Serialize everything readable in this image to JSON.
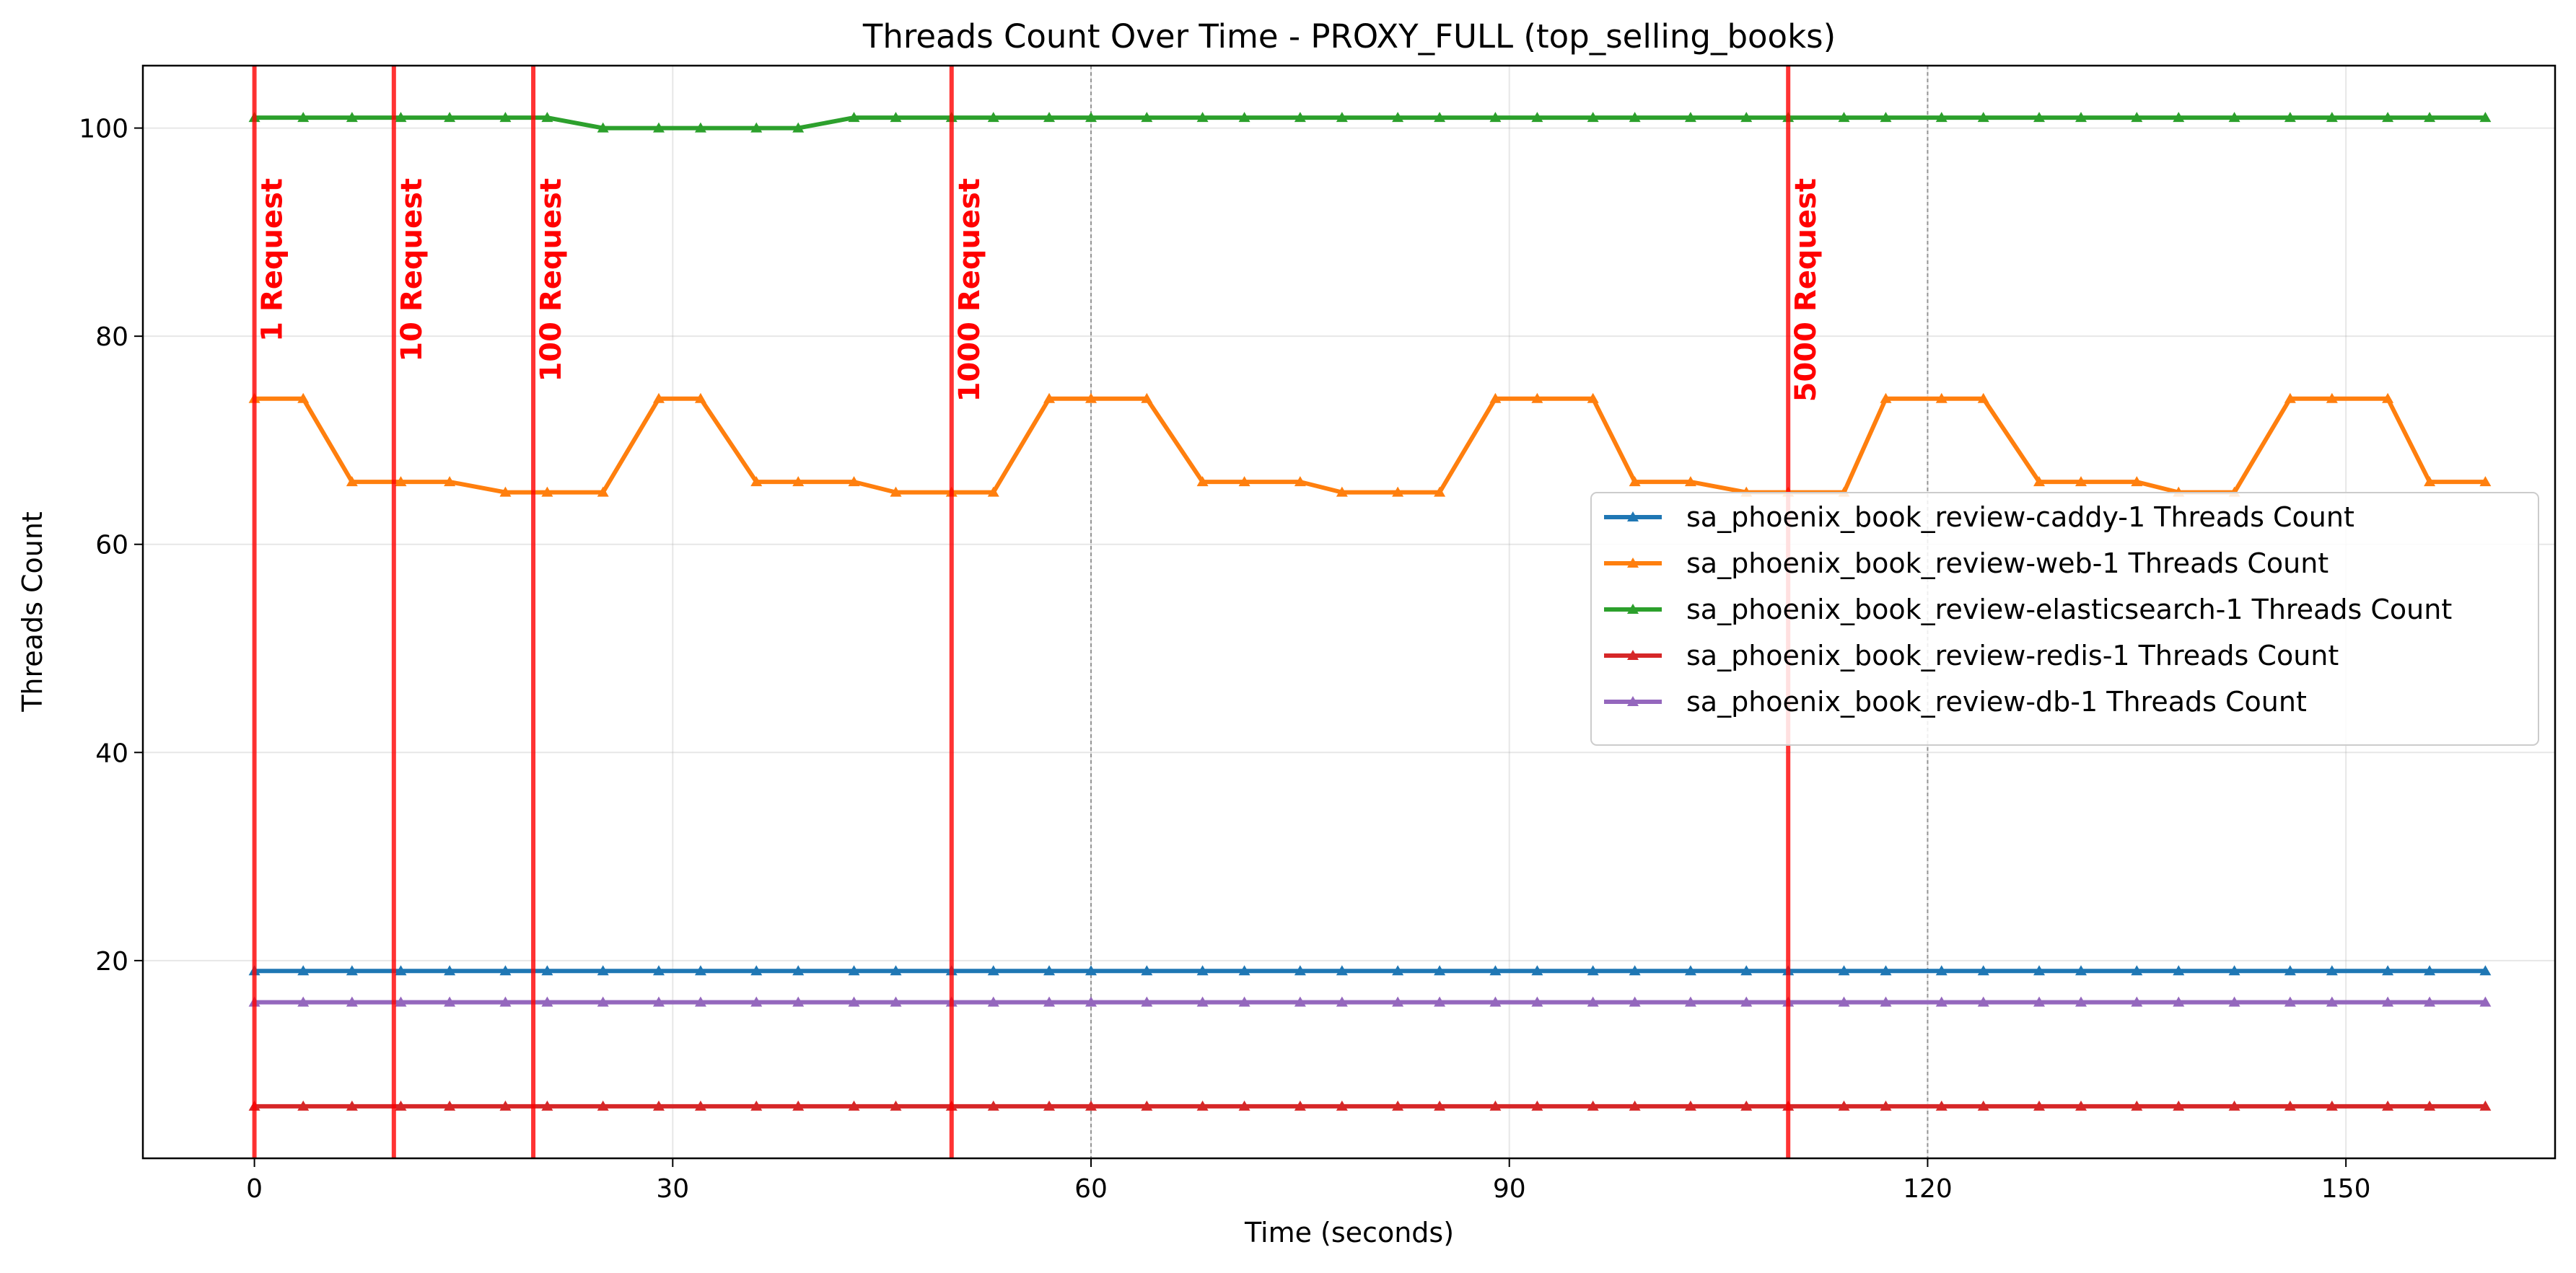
{
  "chart_data": {
    "type": "line",
    "title": "Threads Count Over Time - PROXY_FULL (top_selling_books)",
    "xlabel": "Time (seconds)",
    "ylabel": "Threads Count",
    "xlim": [
      -8,
      165
    ],
    "ylim": [
      1,
      106
    ],
    "xticks": [
      0,
      30,
      60,
      90,
      120,
      150
    ],
    "yticks": [
      20,
      40,
      60,
      80,
      100
    ],
    "grid": true,
    "legend_position": "center-right",
    "x": [
      0,
      3.5,
      7,
      10.5,
      14,
      18,
      21,
      25,
      29,
      32,
      36,
      39,
      43,
      46,
      50,
      53,
      57,
      60,
      64,
      68,
      71,
      75,
      78,
      82,
      85,
      89,
      92,
      96,
      99,
      103,
      107,
      110,
      114,
      117,
      121,
      124,
      128,
      131,
      135,
      138,
      142,
      146,
      149,
      153,
      156,
      160
    ],
    "series": [
      {
        "name": "sa_phoenix_book_review-caddy-1 Threads Count",
        "color": "#1f77b4",
        "values": [
          19,
          19,
          19,
          19,
          19,
          19,
          19,
          19,
          19,
          19,
          19,
          19,
          19,
          19,
          19,
          19,
          19,
          19,
          19,
          19,
          19,
          19,
          19,
          19,
          19,
          19,
          19,
          19,
          19,
          19,
          19,
          19,
          19,
          19,
          19,
          19,
          19,
          19,
          19,
          19,
          19,
          19,
          19,
          19,
          19,
          19
        ]
      },
      {
        "name": "sa_phoenix_book_review-web-1 Threads Count",
        "color": "#ff7f0e",
        "values": [
          74,
          74,
          66,
          66,
          66,
          65,
          65,
          65,
          74,
          74,
          66,
          66,
          66,
          65,
          65,
          65,
          74,
          74,
          74,
          66,
          66,
          66,
          65,
          65,
          65,
          74,
          74,
          74,
          66,
          66,
          65,
          65,
          65,
          74,
          74,
          74,
          66,
          66,
          66,
          65,
          65,
          74,
          74,
          74,
          66,
          66
        ]
      },
      {
        "name": "sa_phoenix_book_review-elasticsearch-1 Threads Count",
        "color": "#2ca02c",
        "values": [
          101,
          101,
          101,
          101,
          101,
          101,
          101,
          100,
          100,
          100,
          100,
          100,
          101,
          101,
          101,
          101,
          101,
          101,
          101,
          101,
          101,
          101,
          101,
          101,
          101,
          101,
          101,
          101,
          101,
          101,
          101,
          101,
          101,
          101,
          101,
          101,
          101,
          101,
          101,
          101,
          101,
          101,
          101,
          101,
          101,
          101
        ]
      },
      {
        "name": "sa_phoenix_book_review-redis-1 Threads Count",
        "color": "#d62728",
        "values": [
          6,
          6,
          6,
          6,
          6,
          6,
          6,
          6,
          6,
          6,
          6,
          6,
          6,
          6,
          6,
          6,
          6,
          6,
          6,
          6,
          6,
          6,
          6,
          6,
          6,
          6,
          6,
          6,
          6,
          6,
          6,
          6,
          6,
          6,
          6,
          6,
          6,
          6,
          6,
          6,
          6,
          6,
          6,
          6,
          6,
          6
        ]
      },
      {
        "name": "sa_phoenix_book_review-db-1 Threads Count",
        "color": "#9467bd",
        "values": [
          16,
          16,
          16,
          16,
          16,
          16,
          16,
          16,
          16,
          16,
          16,
          16,
          16,
          16,
          16,
          16,
          16,
          16,
          16,
          16,
          16,
          16,
          16,
          16,
          16,
          16,
          16,
          16,
          16,
          16,
          16,
          16,
          16,
          16,
          16,
          16,
          16,
          16,
          16,
          16,
          16,
          16,
          16,
          16,
          16,
          16
        ]
      }
    ],
    "request_markers": [
      {
        "x": 0,
        "label": "1 Request"
      },
      {
        "x": 10,
        "label": "10 Request"
      },
      {
        "x": 20,
        "label": "100 Request"
      },
      {
        "x": 50,
        "label": "1000 Request"
      },
      {
        "x": 110,
        "label": "5000 Request"
      }
    ],
    "reference_lines_x": [
      60,
      120
    ],
    "marker_color": "#ff0000"
  }
}
